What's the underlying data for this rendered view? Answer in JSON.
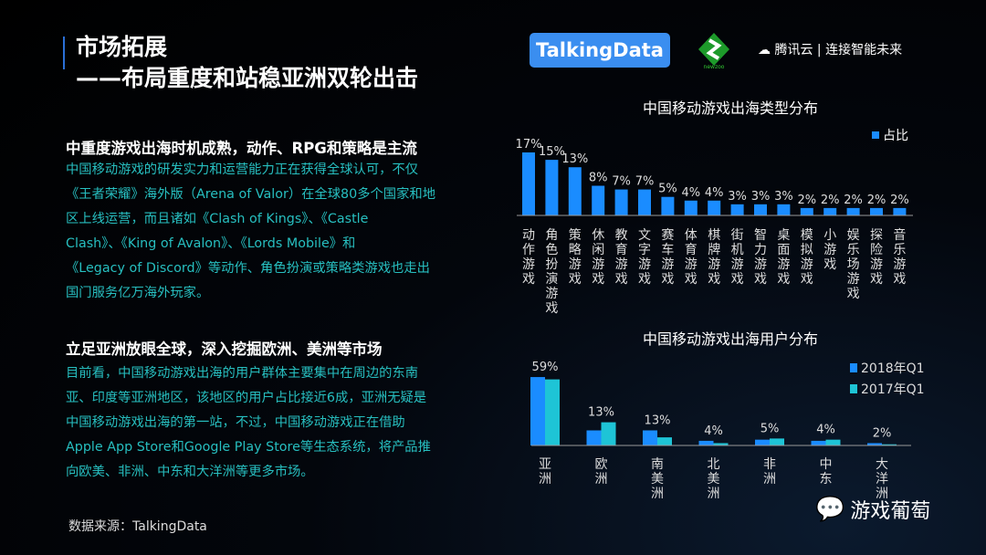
{
  "header": {
    "title_line1": "市场拓展",
    "title_line2": "——布局重度和站稳亚洲双轮出击"
  },
  "logos": {
    "talkingdata": "TalkingData",
    "newzoo": "newzoo",
    "tencent": "腾讯云 | 连接智能未来"
  },
  "section1": {
    "heading": "中重度游戏出海时机成熟，动作、RPG和策略是主流",
    "lines": [
      "中国移动游戏的研发实力和运营能力正在获得全球认可，不仅",
      "《王者荣耀》海外版（Arena of Valor）在全球80多个国家和地",
      "区上线运营，而且诸如《Clash of Kings》、《Castle",
      "Clash》、《King of Avalon》、《Lords Mobile》和",
      "《Legacy of Discord》等动作、角色扮演或策略类游戏也走出",
      "国门服务亿万海外玩家。"
    ]
  },
  "section2": {
    "heading": "立足亚洲放眼全球，深入挖掘欧洲、美洲等市场",
    "lines": [
      "目前看，中国移动游戏出海的用户群体主要集中在周边的东南",
      "亚、印度等亚洲地区，该地区的用户占比接近6成，亚洲无疑是",
      "中国移动游戏出海的第一站，不过，中国移动游戏正在借助",
      "Apple App Store和Google Play Store等生态系统，将产品推",
      "向欧美、非洲、中东和大洋洲等更多市场。"
    ]
  },
  "source": "数据来源：TalkingData",
  "watermark": "游戏葡萄",
  "chart_data": [
    {
      "type": "bar",
      "title": "中国移动游戏出海类型分布",
      "legend_position": "top-right",
      "grid": false,
      "categories": [
        "动作游戏",
        "角色扮演游戏",
        "策略游戏",
        "休闲游戏",
        "教育游戏",
        "文字游戏",
        "赛车游戏",
        "体育游戏",
        "棋牌游戏",
        "街机游戏",
        "智力游戏",
        "桌面游戏",
        "模拟游戏",
        "小游戏",
        "娱乐场游戏",
        "探险游戏",
        "音乐游戏"
      ],
      "series": [
        {
          "name": "占比",
          "color": "#1a8cff",
          "values": [
            17,
            15,
            13,
            8,
            7,
            7,
            5,
            4,
            4,
            3,
            3,
            3,
            2,
            2,
            2,
            2,
            2
          ]
        }
      ],
      "data_labels": [
        "17%",
        "15%",
        "13%",
        "8%",
        "7%",
        "7%",
        "5%",
        "4%",
        "4%",
        "3%",
        "3%",
        "3%",
        "2%",
        "2%",
        "2%",
        "2%",
        "2%"
      ]
    },
    {
      "type": "bar",
      "title": "中国移动游戏出海用户分布",
      "legend_position": "top-right",
      "grid": false,
      "categories": [
        "亚洲",
        "欧洲",
        "南美洲",
        "北美洲",
        "非洲",
        "中东",
        "大洋洲"
      ],
      "series": [
        {
          "name": "2018年Q1",
          "color": "#1a8cff",
          "values": [
            59,
            13,
            13,
            4,
            5,
            4,
            2
          ]
        },
        {
          "name": "2017年Q1",
          "color": "#1ec4d6",
          "values": [
            57,
            20,
            7,
            2,
            6,
            5,
            1
          ]
        }
      ],
      "data_labels": [
        "59%",
        "13%",
        "13%",
        "4%",
        "5%",
        "4%",
        "2%"
      ]
    }
  ]
}
